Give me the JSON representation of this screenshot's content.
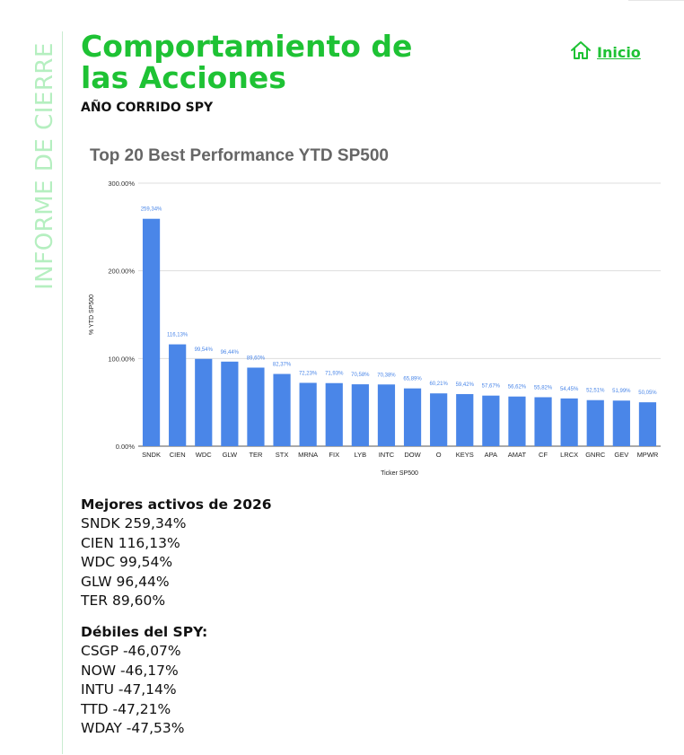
{
  "side_label": "INFORME DE CIERRE",
  "header": {
    "title": "Comportamiento de las Acciones",
    "subtitle": "AÑO CORRIDO SPY",
    "home_label": "Inicio"
  },
  "colors": {
    "accent": "#1ec234",
    "bar": "#4a86e8",
    "bar_label": "#4a86e8",
    "side_label": "#b5efc0"
  },
  "icons": {
    "home": "home-icon"
  },
  "chart_data": {
    "type": "bar",
    "title": "Top 20 Best Performance YTD SP500",
    "xlabel": "Ticker SP500",
    "ylabel": "% YTD SP500",
    "ylim": [
      0,
      300
    ],
    "yticks": [
      "0.00%",
      "100.00%",
      "200.00%",
      "300.00%"
    ],
    "ytick_values": [
      0,
      100,
      200,
      300
    ],
    "grid": true,
    "categories": [
      "SNDK",
      "CIEN",
      "WDC",
      "GLW",
      "TER",
      "STX",
      "MRNA",
      "FIX",
      "LYB",
      "INTC",
      "DOW",
      "O",
      "KEYS",
      "APA",
      "AMAT",
      "CF",
      "LRCX",
      "GNRC",
      "GEV",
      "MPWR"
    ],
    "values": [
      259.34,
      116.13,
      99.54,
      96.44,
      89.6,
      82.37,
      72.23,
      71.93,
      70.58,
      70.38,
      65.89,
      60.21,
      59.42,
      57.67,
      56.62,
      55.82,
      54.45,
      52.51,
      51.99,
      50.05
    ],
    "data_labels": [
      "259,34%",
      "116,13%",
      "99,54%",
      "96,44%",
      "89,60%",
      "82,37%",
      "72,23%",
      "71,93%",
      "70,58%",
      "70,38%",
      "65,89%",
      "60,21%",
      "59,42%",
      "57,67%",
      "56,62%",
      "55,82%",
      "54,45%",
      "52,51%",
      "51,99%",
      "50,05%"
    ]
  },
  "best": {
    "heading": "Mejores activos de 2026",
    "items": [
      "SNDK 259,34%",
      "CIEN 116,13%",
      "WDC 99,54%",
      "GLW 96,44%",
      "TER 89,60%"
    ]
  },
  "weak": {
    "heading": "Débiles del SPY:",
    "items": [
      "CSGP -46,07%",
      "NOW -46,17%",
      "INTU -47,14%",
      "TTD -47,21%",
      "WDAY -47,53%"
    ]
  }
}
